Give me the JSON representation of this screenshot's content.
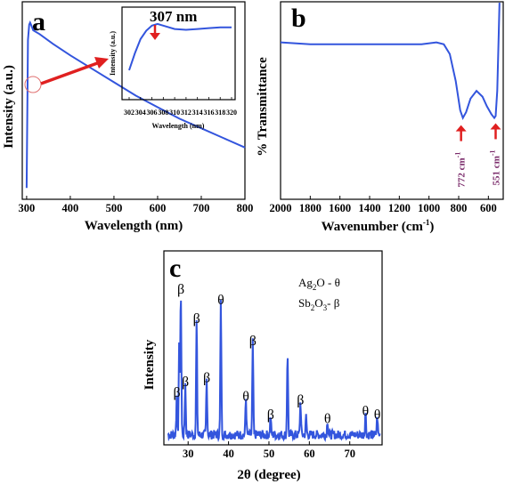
{
  "colors": {
    "series": "#3355dd",
    "arrow": "#e02020",
    "band_label": "#7a2a6a"
  },
  "chart_data": [
    {
      "panel": "a",
      "type": "line",
      "xlabel": "Wavelength (nm)",
      "ylabel": "Intensity (a.u.)",
      "xlim": [
        290,
        800
      ],
      "xticks": [
        "300",
        "400",
        "500",
        "600",
        "700",
        "800"
      ],
      "x": [
        300,
        303,
        306,
        308,
        310,
        315,
        330,
        360,
        400,
        450,
        500,
        550,
        600,
        650,
        700,
        750,
        800
      ],
      "y": [
        0.05,
        0.82,
        0.9,
        0.91,
        0.9,
        0.87,
        0.85,
        0.8,
        0.74,
        0.67,
        0.6,
        0.53,
        0.47,
        0.41,
        0.36,
        0.31,
        0.26
      ],
      "ylim": [
        0,
        1
      ],
      "grid": false,
      "inset": {
        "type": "line",
        "xlabel": "Wavelength (nm)",
        "ylabel": "Intensity (a.u.)",
        "xticks": [
          "302",
          "304",
          "306",
          "308",
          "310",
          "312",
          "314",
          "316",
          "318",
          "320"
        ],
        "x": [
          302,
          303,
          304,
          305,
          306,
          307,
          308,
          310,
          312,
          314,
          316,
          318,
          320
        ],
        "y": [
          0.35,
          0.55,
          0.72,
          0.82,
          0.88,
          0.9,
          0.88,
          0.84,
          0.83,
          0.84,
          0.85,
          0.86,
          0.86
        ],
        "ylim": [
          0,
          1.1
        ],
        "annotation": "307 nm"
      }
    },
    {
      "panel": "b",
      "type": "line",
      "xlabel": "Wavenumber (cm",
      "xlabel_sup": "-1",
      "xlabel_end": ")",
      "ylabel": "% Transmittance",
      "xlim": [
        2000,
        500
      ],
      "xticks": [
        "2000",
        "1800",
        "1600",
        "1400",
        "1200",
        "1000",
        "800",
        "600"
      ],
      "x": [
        2000,
        1800,
        1600,
        1400,
        1200,
        1050,
        950,
        900,
        860,
        820,
        790,
        772,
        750,
        720,
        680,
        640,
        610,
        580,
        560,
        551,
        540,
        530,
        525,
        520
      ],
      "y": [
        0.8,
        0.79,
        0.79,
        0.79,
        0.79,
        0.79,
        0.8,
        0.79,
        0.74,
        0.6,
        0.45,
        0.41,
        0.44,
        0.51,
        0.55,
        0.52,
        0.47,
        0.43,
        0.41,
        0.42,
        0.55,
        0.85,
        1.0,
        1.0
      ],
      "ylim": [
        0,
        1
      ],
      "annotations": [
        {
          "text": "772 cm",
          "sup": "-1",
          "x": 772
        },
        {
          "text": "551 cm",
          "sup": "-1",
          "x": 551
        }
      ],
      "grid": false
    },
    {
      "panel": "c",
      "type": "line",
      "xlabel": "2θ (degree)",
      "ylabel": "Intensity",
      "xlim": [
        24,
        78
      ],
      "xticks": [
        "30",
        "40",
        "50",
        "60",
        "70"
      ],
      "peaks": [
        {
          "x": 27.2,
          "h": 0.22,
          "label": "β"
        },
        {
          "x": 27.8,
          "h": 0.5,
          "label": ""
        },
        {
          "x": 28.2,
          "h": 0.78,
          "label": "β"
        },
        {
          "x": 29.3,
          "h": 0.28,
          "label": "β"
        },
        {
          "x": 32.1,
          "h": 0.62,
          "label": "β"
        },
        {
          "x": 34.6,
          "h": 0.3,
          "label": "β"
        },
        {
          "x": 38.1,
          "h": 0.72,
          "label": "θ"
        },
        {
          "x": 44.3,
          "h": 0.2,
          "label": "θ"
        },
        {
          "x": 46.0,
          "h": 0.5,
          "label": "β"
        },
        {
          "x": 50.4,
          "h": 0.1,
          "label": "β"
        },
        {
          "x": 54.6,
          "h": 0.45,
          "label": ""
        },
        {
          "x": 57.8,
          "h": 0.18,
          "label": "β"
        },
        {
          "x": 59.2,
          "h": 0.1,
          "label": ""
        },
        {
          "x": 64.5,
          "h": 0.08,
          "label": "θ"
        },
        {
          "x": 73.9,
          "h": 0.12,
          "label": "θ"
        },
        {
          "x": 76.8,
          "h": 0.1,
          "label": "θ"
        }
      ],
      "legend": [
        {
          "base": "Ag",
          "sub1": "2",
          "mid": "O",
          "sub2": "",
          "tail": " - θ"
        },
        {
          "base": "Sb",
          "sub1": "2",
          "mid": "O",
          "sub2": "3",
          "tail": "- β"
        }
      ],
      "grid": false
    }
  ]
}
